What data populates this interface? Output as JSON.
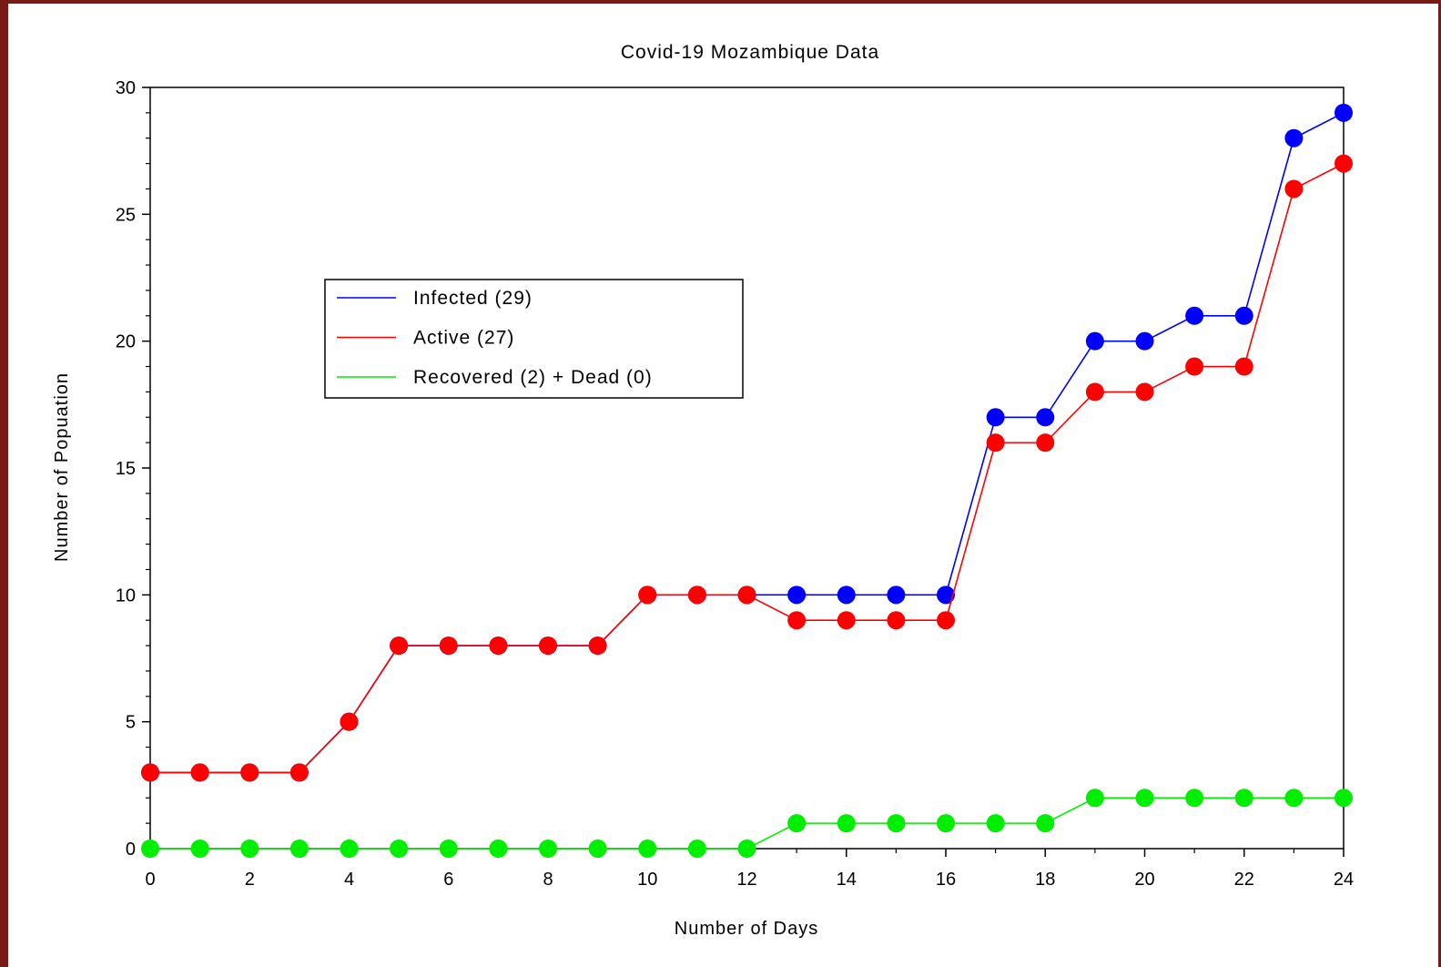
{
  "chart_data": {
    "type": "line",
    "title": "Covid-19 Mozambique Data",
    "xlabel": "Number of Days",
    "ylabel": "Number of Popuation",
    "xlim": [
      0,
      24
    ],
    "ylim": [
      0,
      30
    ],
    "xticks": [
      "0",
      "2",
      "4",
      "6",
      "8",
      "10",
      "12",
      "14",
      "16",
      "18",
      "20",
      "22",
      "24"
    ],
    "yticks": [
      "0",
      "5",
      "10",
      "15",
      "20",
      "25",
      "30"
    ],
    "grid": false,
    "legend_position": "upper-left-center",
    "x": [
      0,
      1,
      2,
      3,
      4,
      5,
      6,
      7,
      8,
      9,
      10,
      11,
      12,
      13,
      14,
      15,
      16,
      17,
      18,
      19,
      20,
      21,
      22,
      23,
      24
    ],
    "series": [
      {
        "name": "Infected (29)",
        "color": "#0000ff",
        "values": [
          3,
          3,
          3,
          3,
          5,
          8,
          8,
          8,
          8,
          8,
          10,
          10,
          10,
          10,
          10,
          10,
          10,
          17,
          17,
          20,
          20,
          21,
          21,
          28,
          29
        ]
      },
      {
        "name": "Active (27)",
        "color": "#ff0000",
        "values": [
          3,
          3,
          3,
          3,
          5,
          8,
          8,
          8,
          8,
          8,
          10,
          10,
          10,
          9,
          9,
          9,
          9,
          16,
          16,
          18,
          18,
          19,
          19,
          26,
          27
        ]
      },
      {
        "name": "Recovered (2) + Dead (0)",
        "color": "#00ee00",
        "values": [
          0,
          0,
          0,
          0,
          0,
          0,
          0,
          0,
          0,
          0,
          0,
          0,
          0,
          1,
          1,
          1,
          1,
          1,
          1,
          2,
          2,
          2,
          2,
          2,
          2
        ]
      }
    ]
  }
}
